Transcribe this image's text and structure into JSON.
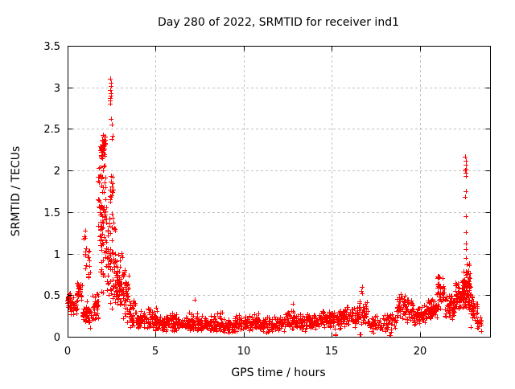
{
  "chart_data": {
    "type": "scatter",
    "title": "Day 280 of 2022, SRMTID for receiver ind1",
    "xlabel": "GPS time / hours",
    "ylabel": "SRMTID / TECUs",
    "xlim": [
      0,
      24
    ],
    "ylim": [
      0,
      3.5
    ],
    "xticks": [
      0,
      5,
      10,
      15,
      20
    ],
    "yticks": [
      0,
      0.5,
      1,
      1.5,
      2,
      2.5,
      3,
      3.5
    ],
    "grid": true,
    "legend": "none",
    "marker": "plus",
    "marker_color": "#ff0000",
    "marker_size": 7,
    "grid_color": "#c0c0c0",
    "border_color": "#000000",
    "background": "#ffffff",
    "seed": 20221007,
    "encoding_note": "bands are [x_start_hr, x_end_hr, n_points, y_min, y_max] density envelopes of the red '+' scatter cloud; points are explicit extreme/outlier values in [hour, TECU]",
    "bands": [
      [
        0.0,
        0.2,
        28,
        0.3,
        0.55
      ],
      [
        0.15,
        0.55,
        30,
        0.25,
        0.48
      ],
      [
        0.55,
        0.85,
        28,
        0.38,
        0.72
      ],
      [
        0.85,
        1.1,
        22,
        0.15,
        0.45
      ],
      [
        0.9,
        1.05,
        12,
        0.75,
        1.35
      ],
      [
        1.05,
        1.4,
        28,
        0.1,
        0.4
      ],
      [
        1.15,
        1.28,
        10,
        0.55,
        1.15
      ],
      [
        1.4,
        1.75,
        30,
        0.15,
        0.55
      ],
      [
        1.75,
        2.2,
        90,
        0.3,
        2.5
      ],
      [
        1.85,
        2.15,
        30,
        2.05,
        2.5
      ],
      [
        2.2,
        2.75,
        70,
        0.2,
        1.6
      ],
      [
        2.4,
        2.62,
        12,
        1.6,
        1.95
      ],
      [
        2.75,
        3.15,
        55,
        0.3,
        1.05
      ],
      [
        3.15,
        3.5,
        40,
        0.15,
        0.85
      ],
      [
        3.5,
        3.85,
        35,
        0.1,
        0.5
      ],
      [
        3.85,
        4.3,
        40,
        0.07,
        0.35
      ],
      [
        4.3,
        5.1,
        55,
        0.06,
        0.36
      ],
      [
        5.0,
        5.6,
        45,
        0.06,
        0.25
      ],
      [
        5.6,
        6.2,
        45,
        0.05,
        0.3
      ],
      [
        6.2,
        6.9,
        50,
        0.06,
        0.24
      ],
      [
        6.9,
        7.4,
        40,
        0.05,
        0.32
      ],
      [
        7.4,
        8.1,
        50,
        0.04,
        0.26
      ],
      [
        8.1,
        8.8,
        50,
        0.05,
        0.3
      ],
      [
        8.8,
        9.5,
        50,
        0.04,
        0.22
      ],
      [
        9.5,
        10.2,
        50,
        0.05,
        0.26
      ],
      [
        10.2,
        10.9,
        50,
        0.06,
        0.3
      ],
      [
        10.9,
        11.6,
        50,
        0.04,
        0.24
      ],
      [
        11.6,
        12.3,
        50,
        0.05,
        0.28
      ],
      [
        12.3,
        12.9,
        45,
        0.08,
        0.35
      ],
      [
        12.9,
        13.6,
        50,
        0.06,
        0.28
      ],
      [
        13.6,
        14.3,
        50,
        0.07,
        0.3
      ],
      [
        14.3,
        15.0,
        50,
        0.08,
        0.33
      ],
      [
        15.0,
        15.7,
        50,
        0.08,
        0.35
      ],
      [
        15.7,
        16.4,
        50,
        0.1,
        0.38
      ],
      [
        16.4,
        17.1,
        55,
        0.1,
        0.45
      ],
      [
        17.1,
        17.9,
        40,
        0.04,
        0.28
      ],
      [
        17.9,
        18.7,
        40,
        0.05,
        0.32
      ],
      [
        18.7,
        19.6,
        70,
        0.15,
        0.52
      ],
      [
        19.6,
        20.4,
        60,
        0.12,
        0.4
      ],
      [
        20.4,
        21.0,
        55,
        0.18,
        0.48
      ],
      [
        21.0,
        21.4,
        40,
        0.28,
        0.8
      ],
      [
        21.4,
        22.0,
        55,
        0.18,
        0.55
      ],
      [
        22.0,
        22.5,
        65,
        0.28,
        0.72
      ],
      [
        22.5,
        22.9,
        75,
        0.3,
        0.9
      ],
      [
        22.9,
        23.3,
        35,
        0.1,
        0.55
      ],
      [
        23.25,
        23.55,
        14,
        0.05,
        0.3
      ]
    ],
    "points": [
      [
        2.42,
        2.8
      ],
      [
        2.44,
        2.87
      ],
      [
        2.46,
        2.93
      ],
      [
        2.43,
        2.97
      ],
      [
        2.47,
        3.02
      ],
      [
        2.45,
        3.06
      ],
      [
        2.44,
        3.1
      ],
      [
        2.48,
        2.9
      ],
      [
        2.41,
        2.84
      ],
      [
        2.46,
        2.62
      ],
      [
        2.52,
        2.55
      ],
      [
        2.58,
        2.42
      ],
      [
        2.5,
        2.38
      ],
      [
        2.55,
        1.92
      ],
      [
        2.52,
        1.75
      ],
      [
        7.2,
        0.44
      ],
      [
        12.8,
        0.4
      ],
      [
        15.2,
        0.02
      ],
      [
        15.23,
        0.03
      ],
      [
        16.68,
        0.55
      ],
      [
        16.72,
        0.6
      ],
      [
        16.75,
        0.52
      ],
      [
        16.6,
        0.03
      ],
      [
        16.66,
        0.03
      ],
      [
        18.28,
        0.02
      ],
      [
        18.33,
        0.02
      ],
      [
        22.6,
        2.17
      ],
      [
        22.63,
        2.12
      ],
      [
        22.61,
        2.07
      ],
      [
        22.64,
        2.02
      ],
      [
        22.62,
        1.97
      ],
      [
        22.6,
        2.0
      ],
      [
        22.63,
        1.93
      ],
      [
        22.65,
        1.75
      ],
      [
        22.6,
        1.68
      ],
      [
        22.63,
        1.45
      ],
      [
        22.62,
        1.26
      ],
      [
        22.61,
        1.12
      ],
      [
        22.64,
        1.05
      ],
      [
        22.62,
        0.95
      ]
    ]
  }
}
